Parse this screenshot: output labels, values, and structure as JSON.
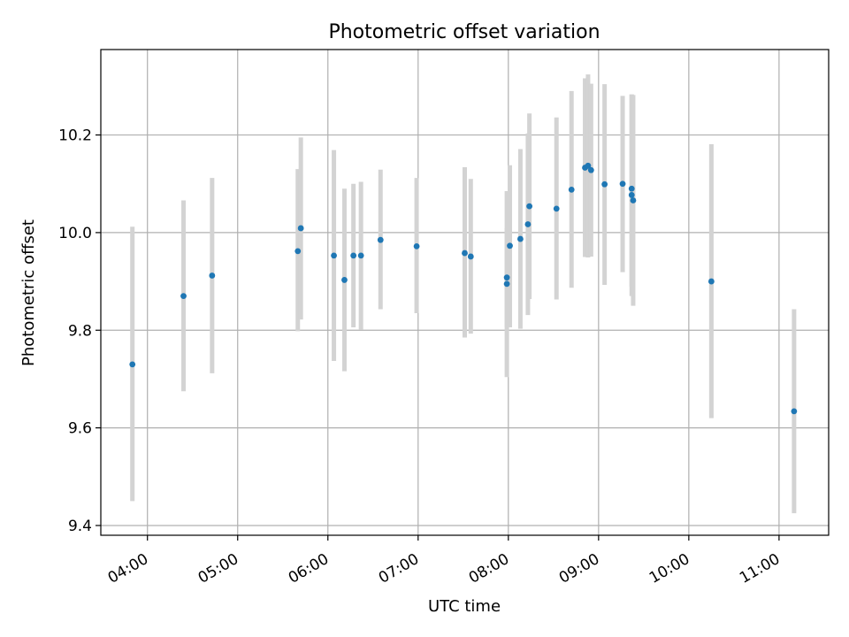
{
  "chart_data": {
    "type": "scatter",
    "title": "Photometric offset variation",
    "xlabel": "UTC time",
    "ylabel": "Photometric offset",
    "xlim": [
      "03:29",
      "11:33"
    ],
    "ylim": [
      9.38,
      10.375
    ],
    "grid": true,
    "xticks": [
      "04:00",
      "05:00",
      "06:00",
      "07:00",
      "08:00",
      "09:00",
      "10:00",
      "11:00"
    ],
    "yticks": [
      "9.4",
      "9.6",
      "9.8",
      "10.0",
      "10.2"
    ],
    "colors": {
      "points": "#1f77b4",
      "errorbars": "#d3d3d3",
      "grid": "#b0b0b0"
    },
    "points": [
      {
        "t": "03:50",
        "y": 9.73,
        "lo": 9.45,
        "hi": 10.012
      },
      {
        "t": "04:24",
        "y": 9.87,
        "lo": 9.675,
        "hi": 10.066
      },
      {
        "t": "04:43",
        "y": 9.912,
        "lo": 9.712,
        "hi": 10.112
      },
      {
        "t": "05:40",
        "y": 9.962,
        "lo": 9.798,
        "hi": 10.13
      },
      {
        "t": "05:42",
        "y": 10.009,
        "lo": 9.822,
        "hi": 10.195
      },
      {
        "t": "06:04",
        "y": 9.953,
        "lo": 9.737,
        "hi": 10.169
      },
      {
        "t": "06:11",
        "y": 9.903,
        "lo": 9.716,
        "hi": 10.09
      },
      {
        "t": "06:17",
        "y": 9.953,
        "lo": 9.806,
        "hi": 10.1
      },
      {
        "t": "06:22",
        "y": 9.953,
        "lo": 9.801,
        "hi": 10.104
      },
      {
        "t": "06:35",
        "y": 9.985,
        "lo": 9.843,
        "hi": 10.129
      },
      {
        "t": "06:59",
        "y": 9.972,
        "lo": 9.835,
        "hi": 10.112
      },
      {
        "t": "07:31",
        "y": 9.958,
        "lo": 9.785,
        "hi": 10.134
      },
      {
        "t": "07:35",
        "y": 9.951,
        "lo": 9.793,
        "hi": 10.11
      },
      {
        "t": "07:59",
        "y": 9.895,
        "lo": 9.704,
        "hi": 10.085
      },
      {
        "t": "07:59",
        "y": 9.908,
        "lo": 9.806,
        "hi": 10.01
      },
      {
        "t": "08:01",
        "y": 9.973,
        "lo": 9.806,
        "hi": 10.138
      },
      {
        "t": "08:08",
        "y": 9.987,
        "lo": 9.803,
        "hi": 10.171
      },
      {
        "t": "08:13",
        "y": 10.017,
        "lo": 9.831,
        "hi": 10.203
      },
      {
        "t": "08:14",
        "y": 10.054,
        "lo": 9.864,
        "hi": 10.244
      },
      {
        "t": "08:32",
        "y": 10.049,
        "lo": 9.863,
        "hi": 10.236
      },
      {
        "t": "08:42",
        "y": 10.088,
        "lo": 9.887,
        "hi": 10.29
      },
      {
        "t": "08:51",
        "y": 10.133,
        "lo": 9.95,
        "hi": 10.316
      },
      {
        "t": "08:53",
        "y": 10.137,
        "lo": 9.949,
        "hi": 10.324
      },
      {
        "t": "08:55",
        "y": 10.128,
        "lo": 9.951,
        "hi": 10.305
      },
      {
        "t": "09:04",
        "y": 10.099,
        "lo": 9.893,
        "hi": 10.304
      },
      {
        "t": "09:16",
        "y": 10.1,
        "lo": 9.919,
        "hi": 10.28
      },
      {
        "t": "09:22",
        "y": 10.09,
        "lo": 9.889,
        "hi": 10.283
      },
      {
        "t": "09:22",
        "y": 10.077,
        "lo": 9.87,
        "hi": 10.283
      },
      {
        "t": "09:23",
        "y": 10.066,
        "lo": 9.85,
        "hi": 10.282
      },
      {
        "t": "10:15",
        "y": 9.9,
        "lo": 9.62,
        "hi": 10.181
      },
      {
        "t": "11:10",
        "y": 9.634,
        "lo": 9.425,
        "hi": 9.843
      }
    ]
  }
}
